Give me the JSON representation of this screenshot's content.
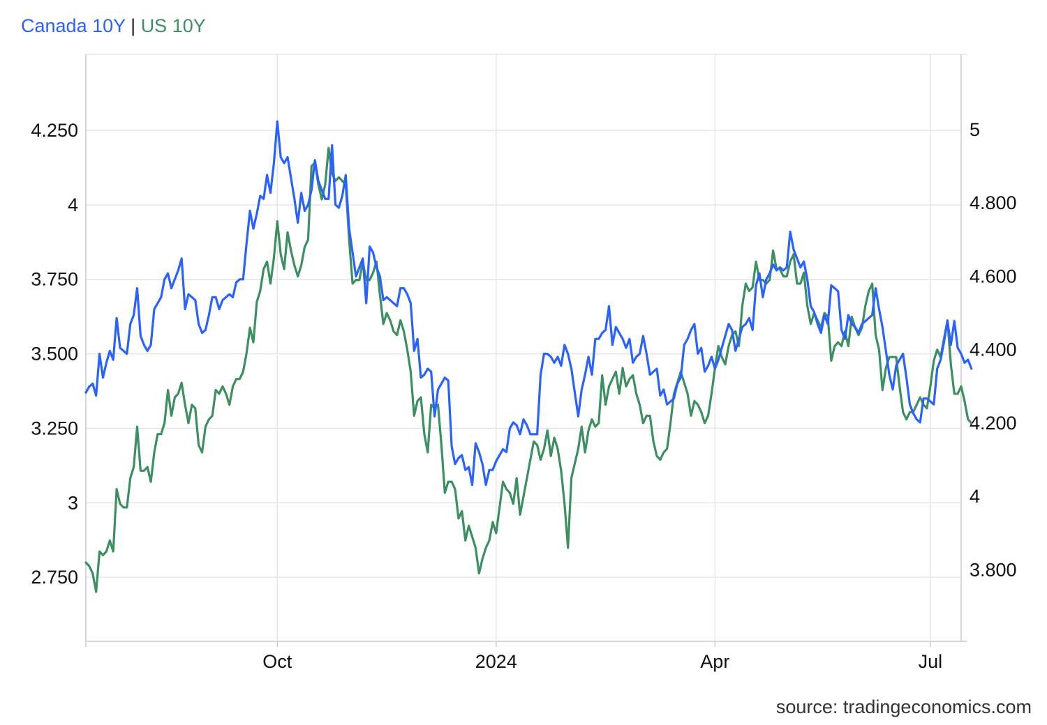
{
  "legend": {
    "canada_label": "Canada 10Y",
    "separator": "|",
    "us_label": "US 10Y"
  },
  "source": "source: tradingeconomics.com",
  "colors": {
    "canada": "#2962ff",
    "us": "#3c9060",
    "grid": "#e6e6e6",
    "axis": "#cccccc"
  },
  "chart_data": {
    "type": "line",
    "x_ticks": [
      "Oct",
      "2024",
      "Apr",
      "Jul"
    ],
    "x_tick_index": [
      56,
      120,
      184,
      247
    ],
    "x_range": [
      0,
      256
    ],
    "left_axis": {
      "ticks": [
        "4.250",
        "4",
        "3.750",
        "3.500",
        "3.250",
        "3",
        "2.750"
      ],
      "tick_values": [
        4.25,
        4.0,
        3.75,
        3.5,
        3.25,
        3.0,
        2.75
      ],
      "range": [
        2.535,
        4.505
      ]
    },
    "right_axis": {
      "ticks": [
        "5",
        "4.800",
        "4.600",
        "4.400",
        "4.200",
        "4",
        "3.800"
      ],
      "tick_values": [
        5.0,
        4.8,
        4.6,
        4.4,
        4.2,
        4.0,
        3.8
      ],
      "range": [
        3.605,
        5.205
      ]
    },
    "grid": true,
    "series": [
      {
        "name": "Canada 10Y",
        "axis": "left",
        "values": [
          3.37,
          3.39,
          3.4,
          3.36,
          3.5,
          3.42,
          3.47,
          3.51,
          3.48,
          3.62,
          3.52,
          3.51,
          3.5,
          3.6,
          3.63,
          3.72,
          3.56,
          3.53,
          3.51,
          3.53,
          3.65,
          3.67,
          3.69,
          3.75,
          3.77,
          3.72,
          3.75,
          3.78,
          3.82,
          3.65,
          3.7,
          3.69,
          3.68,
          3.6,
          3.57,
          3.58,
          3.63,
          3.69,
          3.69,
          3.65,
          3.68,
          3.69,
          3.7,
          3.69,
          3.74,
          3.75,
          3.75,
          3.87,
          3.98,
          3.92,
          3.97,
          4.03,
          4.02,
          4.1,
          4.04,
          4.14,
          4.28,
          4.16,
          4.14,
          4.16,
          4.09,
          4.02,
          3.94,
          4.04,
          3.98,
          4.0,
          4.05,
          4.15,
          4.08,
          4.05,
          4.02,
          4.02,
          4.2,
          4.0,
          3.99,
          4.03,
          4.1,
          3.92,
          3.84,
          3.76,
          3.79,
          3.82,
          3.67,
          3.86,
          3.84,
          3.79,
          3.76,
          3.68,
          3.69,
          3.68,
          3.67,
          3.66,
          3.72,
          3.72,
          3.7,
          3.67,
          3.51,
          3.55,
          3.42,
          3.43,
          3.45,
          3.44,
          3.29,
          3.38,
          3.4,
          3.42,
          3.41,
          3.19,
          3.13,
          3.15,
          3.16,
          3.11,
          3.12,
          3.06,
          3.2,
          3.17,
          3.13,
          3.06,
          3.11,
          3.11,
          3.14,
          3.16,
          3.18,
          3.17,
          3.25,
          3.27,
          3.26,
          3.23,
          3.28,
          3.26,
          3.23,
          3.23,
          3.23,
          3.43,
          3.5,
          3.5,
          3.49,
          3.47,
          3.49,
          3.46,
          3.53,
          3.5,
          3.45,
          3.37,
          3.29,
          3.38,
          3.43,
          3.49,
          3.43,
          3.55,
          3.55,
          3.57,
          3.58,
          3.66,
          3.53,
          3.59,
          3.57,
          3.55,
          3.52,
          3.55,
          3.47,
          3.49,
          3.5,
          3.56,
          3.5,
          3.43,
          3.44,
          3.45,
          3.36,
          3.38,
          3.33,
          3.34,
          3.35,
          3.4,
          3.42,
          3.53,
          3.55,
          3.58,
          3.6,
          3.5,
          3.52,
          3.44,
          3.46,
          3.49,
          3.45,
          3.48,
          3.52,
          3.56,
          3.6,
          3.58,
          3.51,
          3.55,
          3.59,
          3.6,
          3.62,
          3.58,
          3.73,
          3.77,
          3.69,
          3.75,
          3.77,
          3.8,
          3.78,
          3.79,
          3.78,
          3.79,
          3.91,
          3.85,
          3.82,
          3.79,
          3.81,
          3.75,
          3.66,
          3.64,
          3.6,
          3.57,
          3.63,
          3.6,
          3.73,
          3.72,
          3.71,
          3.58,
          3.55,
          3.63,
          3.6,
          3.59,
          3.57,
          3.6,
          3.61,
          3.62,
          3.63,
          3.72,
          3.65,
          3.59,
          3.51,
          3.43,
          3.38,
          3.46,
          3.48,
          3.5,
          3.42,
          3.33,
          3.3,
          3.28,
          3.27,
          3.35,
          3.35,
          3.34,
          3.33,
          3.45,
          3.48,
          3.54,
          3.61,
          3.53,
          3.61,
          3.52,
          3.5,
          3.47,
          3.48,
          3.45
        ],
        "color": "#2962ff"
      },
      {
        "name": "US 10Y",
        "axis": "right",
        "values": [
          3.82,
          3.81,
          3.79,
          3.74,
          3.85,
          3.84,
          3.85,
          3.88,
          3.85,
          4.02,
          3.98,
          3.97,
          3.97,
          4.05,
          4.08,
          4.19,
          4.07,
          4.07,
          4.08,
          4.04,
          4.12,
          4.17,
          4.17,
          4.2,
          4.29,
          4.22,
          4.27,
          4.28,
          4.31,
          4.25,
          4.2,
          4.25,
          4.24,
          4.14,
          4.12,
          4.19,
          4.21,
          4.22,
          4.29,
          4.28,
          4.3,
          4.28,
          4.25,
          4.3,
          4.32,
          4.32,
          4.34,
          4.39,
          4.46,
          4.42,
          4.53,
          4.56,
          4.62,
          4.64,
          4.58,
          4.65,
          4.75,
          4.66,
          4.62,
          4.72,
          4.67,
          4.63,
          4.6,
          4.63,
          4.68,
          4.7,
          4.9,
          4.91,
          4.85,
          4.81,
          4.85,
          4.95,
          4.88,
          4.86,
          4.87,
          4.86,
          4.85,
          4.7,
          4.58,
          4.59,
          4.59,
          4.64,
          4.59,
          4.59,
          4.61,
          4.64,
          4.55,
          4.47,
          4.5,
          4.48,
          4.45,
          4.44,
          4.48,
          4.45,
          4.4,
          4.34,
          4.22,
          4.26,
          4.27,
          4.17,
          4.12,
          4.25,
          4.24,
          4.25,
          4.14,
          4.01,
          4.04,
          4.04,
          4.02,
          3.94,
          3.96,
          3.88,
          3.92,
          3.89,
          3.86,
          3.79,
          3.83,
          3.86,
          3.88,
          3.93,
          3.9,
          3.97,
          4.04,
          4.02,
          4.01,
          3.98,
          4.05,
          3.95,
          4.0,
          4.05,
          4.1,
          4.15,
          4.14,
          4.1,
          4.13,
          4.18,
          4.11,
          4.16,
          4.13,
          4.07,
          3.98,
          3.86,
          4.05,
          4.09,
          4.13,
          4.19,
          4.12,
          4.18,
          4.21,
          4.19,
          4.2,
          4.33,
          4.25,
          4.3,
          4.32,
          4.34,
          4.28,
          4.35,
          4.3,
          4.32,
          4.33,
          4.28,
          4.25,
          4.2,
          4.22,
          4.22,
          4.15,
          4.11,
          4.1,
          4.12,
          4.13,
          4.2,
          4.28,
          4.31,
          4.34,
          4.31,
          4.28,
          4.22,
          4.26,
          4.25,
          4.23,
          4.2,
          4.22,
          4.28,
          4.35,
          4.41,
          4.38,
          4.36,
          4.41,
          4.44,
          4.45,
          4.41,
          4.52,
          4.58,
          4.56,
          4.57,
          4.64,
          4.59,
          4.59,
          4.58,
          4.59,
          4.67,
          4.62,
          4.62,
          4.6,
          4.6,
          4.64,
          4.66,
          4.58,
          4.58,
          4.61,
          4.52,
          4.47,
          4.5,
          4.48,
          4.46,
          4.5,
          4.49,
          4.37,
          4.41,
          4.42,
          4.41,
          4.45,
          4.41,
          4.49,
          4.46,
          4.44,
          4.46,
          4.52,
          4.56,
          4.58,
          4.44,
          4.4,
          4.29,
          4.35,
          4.38,
          4.38,
          4.38,
          4.3,
          4.23,
          4.21,
          4.23,
          4.23,
          4.25,
          4.27,
          4.25,
          4.24,
          4.3,
          4.37,
          4.4,
          4.38,
          4.43,
          4.48,
          4.36,
          4.28,
          4.28,
          4.3,
          4.26,
          4.21,
          4.2
        ]
      }
    ]
  }
}
